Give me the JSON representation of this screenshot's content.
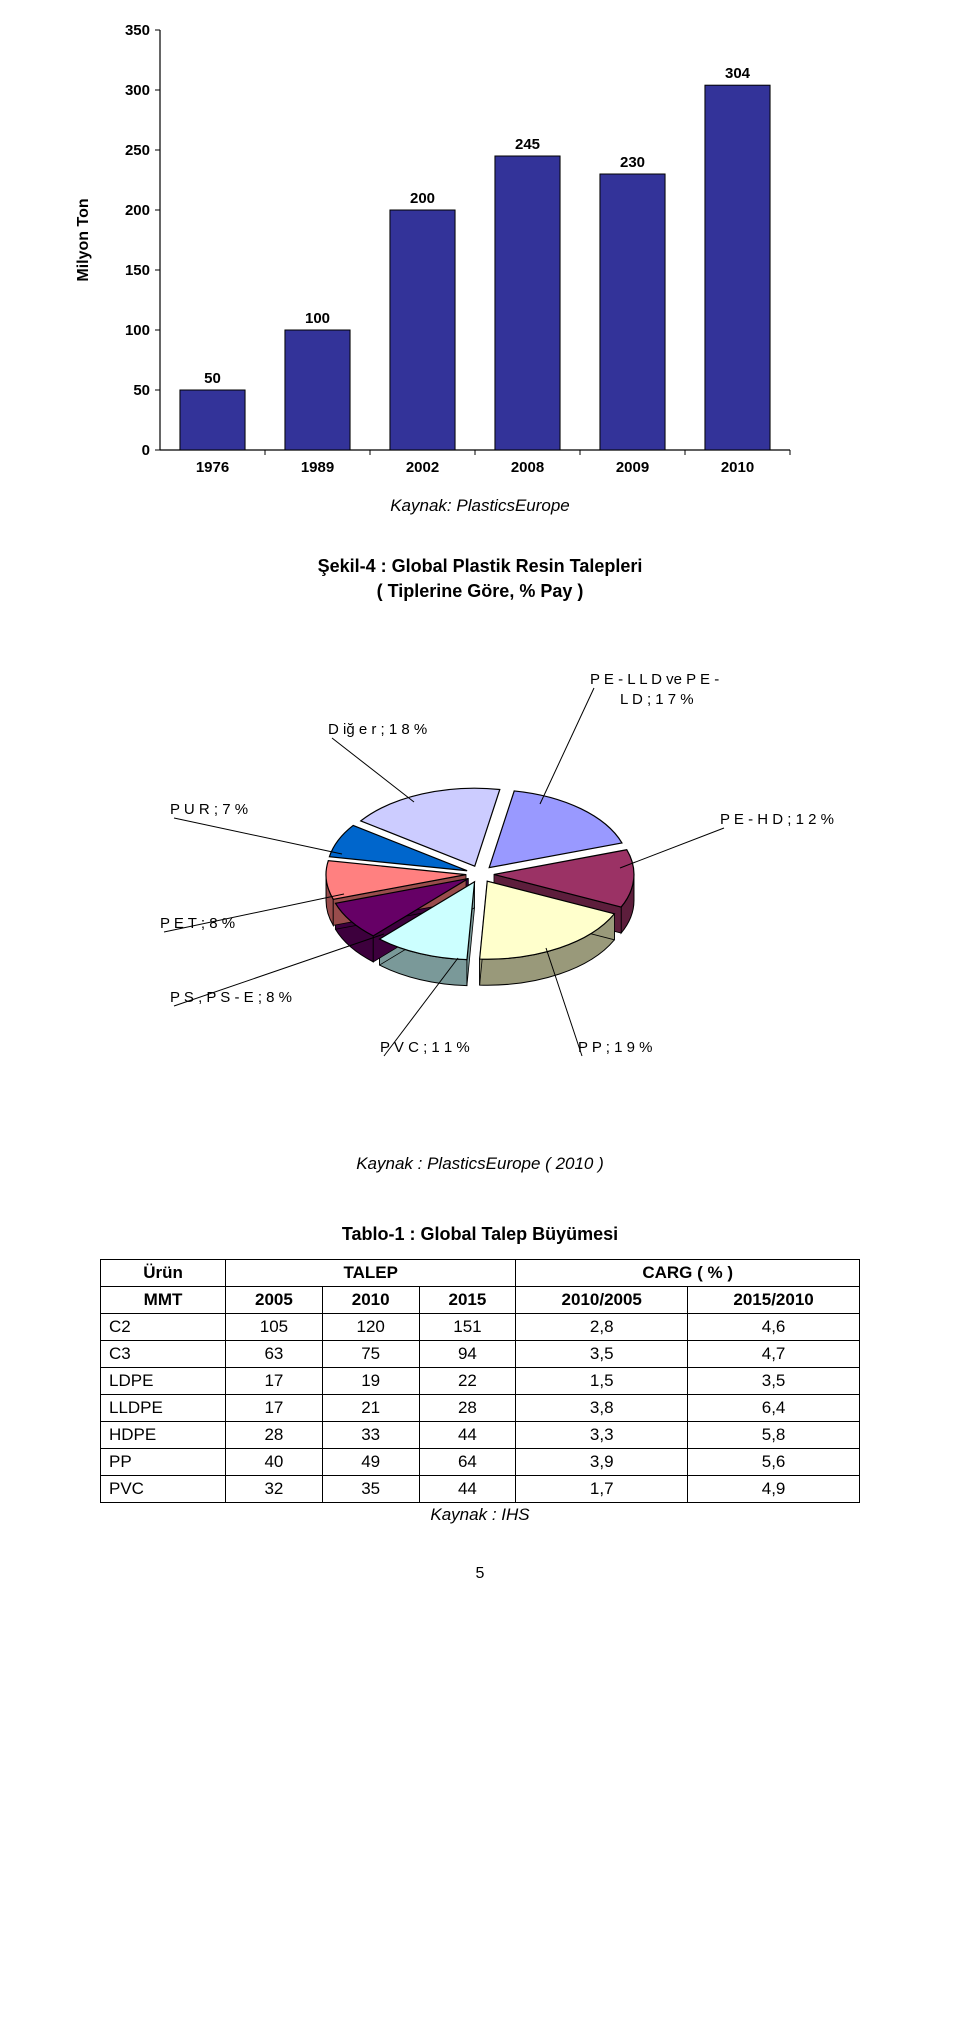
{
  "bar_chart": {
    "type": "bar",
    "y_axis_label": "Milyon Ton",
    "x_categories": [
      "1976",
      "1989",
      "2002",
      "2008",
      "2009",
      "2010"
    ],
    "values": [
      50,
      100,
      200,
      245,
      230,
      304
    ],
    "value_labels": [
      "50",
      "100",
      "200",
      "245",
      "230",
      "304"
    ],
    "y_ticks": [
      0,
      50,
      100,
      150,
      200,
      250,
      300,
      350
    ],
    "ylim": [
      0,
      350
    ],
    "bar_color": "#333399",
    "bar_border_color": "#000000",
    "grid_color": "#000000",
    "background_color": "#ffffff",
    "label_fontsize": 15,
    "caption": "Kaynak: PlasticsEurope"
  },
  "pie_chart": {
    "type": "pie",
    "title_line1": "Şekil-4 : Global Plastik Resin Talepleri",
    "title_line2": "( Tiplerine Göre, % Pay )",
    "slices": [
      {
        "label": "P E - L L D  ve  P E - L D ;  1 7 %",
        "value": 17,
        "color": "#9999ff"
      },
      {
        "label": "P E - H D ;  1 2 %",
        "value": 12,
        "color": "#9b3265"
      },
      {
        "label": "P P ;  1 9 %",
        "value": 19,
        "color": "#ffffcc"
      },
      {
        "label": "P V C ;  1 1 %",
        "value": 11,
        "color": "#ccffff"
      },
      {
        "label": "P S ,  P S - E ;  8 %",
        "value": 8,
        "color": "#660066"
      },
      {
        "label": "P E T ;  8 %",
        "value": 8,
        "color": "#ff8080"
      },
      {
        "label": "P U R ;  7 %",
        "value": 7,
        "color": "#0066cc"
      },
      {
        "label": "D iğ e r ;  1 8 %",
        "value": 18,
        "color": "#ccccff"
      }
    ],
    "border_color": "#000000",
    "label_fontsize": 15,
    "caption": "Kaynak : PlasticsEurope ( 2010 )"
  },
  "table": {
    "title": "Tablo-1 : Global Talep Büyümesi",
    "header_row1": [
      "Ürün",
      "TALEP",
      "CARG ( % )"
    ],
    "header_row2": [
      "MMT",
      "2005",
      "2010",
      "2015",
      "2010/2005",
      "2015/2010"
    ],
    "rows": [
      [
        "C2",
        "105",
        "120",
        "151",
        "2,8",
        "4,6"
      ],
      [
        "C3",
        "63",
        "75",
        "94",
        "3,5",
        "4,7"
      ],
      [
        "LDPE",
        "17",
        "19",
        "22",
        "1,5",
        "3,5"
      ],
      [
        "LLDPE",
        "17",
        "21",
        "28",
        "3,8",
        "6,4"
      ],
      [
        "HDPE",
        "28",
        "33",
        "44",
        "3,3",
        "5,8"
      ],
      [
        "PP",
        "40",
        "49",
        "64",
        "3,9",
        "5,6"
      ],
      [
        "PVC",
        "32",
        "35",
        "44",
        "1,7",
        "4,9"
      ]
    ],
    "caption": "Kaynak : IHS"
  },
  "page_number": "5"
}
